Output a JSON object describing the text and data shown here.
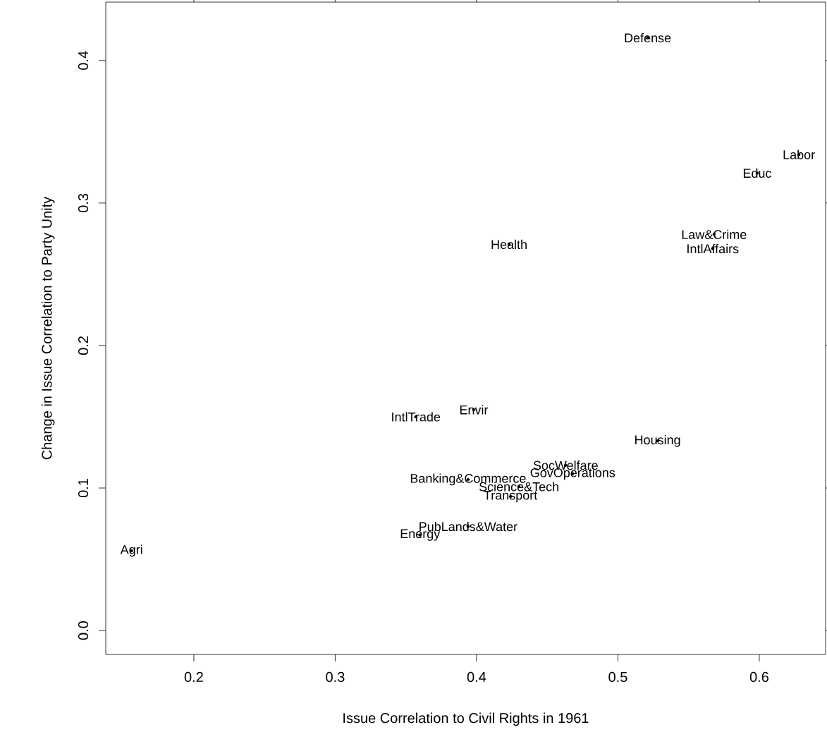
{
  "chart_data": {
    "type": "scatter",
    "xlabel": "Issue Correlation to Civil Rights in 1961",
    "ylabel": "Change in Issue Correlation to Party Unity",
    "x": [
      0.521,
      0.628,
      0.5985,
      0.568,
      0.567,
      0.423,
      0.398,
      0.357,
      0.528,
      0.463,
      0.468,
      0.394,
      0.43,
      0.424,
      0.394,
      0.36,
      0.156
    ],
    "values": [
      0.416,
      0.334,
      0.321,
      0.278,
      0.268,
      0.271,
      0.155,
      0.15,
      0.133,
      0.116,
      0.11,
      0.106,
      0.101,
      0.094,
      0.073,
      0.067,
      0.056
    ],
    "value_labels": [
      "Defense",
      "Labor",
      "Educ",
      "Law&Crime",
      "IntlAffairs",
      "Health",
      "Envir",
      "IntlTrade",
      "Housing",
      "SocWelfare",
      "GovOperations",
      "Banking&Commerce",
      "Science&Tech",
      "Transport",
      "PubLands&Water",
      "Energy",
      "Agri"
    ],
    "marker": "none",
    "xlim": [
      0.1377,
      0.6469
    ],
    "ylim": [
      -0.0168,
      0.441
    ],
    "xticks": [
      0.2,
      0.3,
      0.4,
      0.5,
      0.6
    ],
    "yticks": [
      {
        "value": 0.0,
        "label": "0.0"
      },
      0.1,
      0.2,
      0.3,
      0.4
    ]
  }
}
